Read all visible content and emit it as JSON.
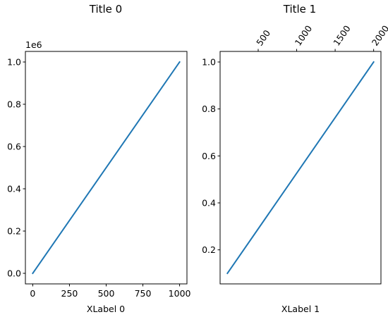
{
  "chart_data": [
    {
      "type": "line",
      "title": "Title 0",
      "xlabel": "XLabel 0",
      "ylabel": "",
      "y_offset_text": "1e6",
      "x": [
        0,
        1000
      ],
      "series": [
        {
          "values": [
            0,
            1000000
          ]
        }
      ],
      "xlim": [
        -50,
        1050
      ],
      "ylim": [
        -50000,
        1050000
      ],
      "xticks": [
        0,
        250,
        500,
        750,
        1000
      ],
      "xtick_labels": [
        "0",
        "250",
        "500",
        "750",
        "1000"
      ],
      "yticks": [
        0,
        200000,
        400000,
        600000,
        800000,
        1000000
      ],
      "ytick_labels": [
        "0.0",
        "0.2",
        "0.4",
        "0.6",
        "0.8",
        "1.0"
      ],
      "grid": false,
      "color": "#1f77b4"
    },
    {
      "type": "line",
      "title": "Title 1",
      "xlabel": "XLabel 1",
      "ylabel": "",
      "x": [
        100,
        2000
      ],
      "series": [
        {
          "values": [
            0.1,
            1.0
          ]
        }
      ],
      "xlim": [
        5,
        2095
      ],
      "ylim": [
        0.055,
        1.045
      ],
      "xticks_top": [
        500,
        1000,
        1500,
        2000
      ],
      "xtick_labels_top": [
        "500",
        "1000",
        "1500",
        "2000"
      ],
      "yticks": [
        0.2,
        0.4,
        0.6,
        0.8,
        1.0
      ],
      "ytick_labels": [
        "0.2",
        "0.4",
        "0.6",
        "0.8",
        "1.0"
      ],
      "grid": false,
      "color": "#1f77b4"
    }
  ]
}
